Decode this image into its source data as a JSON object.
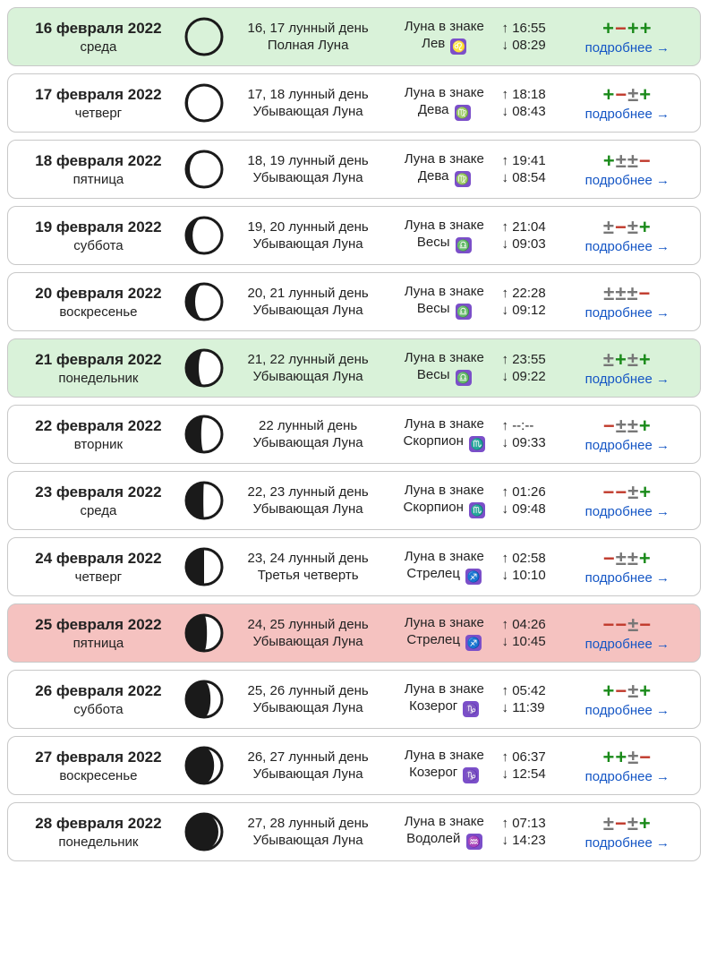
{
  "moreLabel": "подробнее →",
  "signLabel": "Луна в знаке",
  "colors": {
    "green": "#d9f2d9",
    "red": "#f5c2c0",
    "link": "#1556c5",
    "plus": "#1a8a1a",
    "minus": "#c0392b",
    "pm": "#777777",
    "zodiacBg": "#7b4fc9"
  },
  "ratingLegend": {
    "+": "plus",
    "-": "minus",
    "±": "pm"
  },
  "rows": [
    {
      "date": "16 февраля 2022",
      "dow": "среда",
      "lunarDay": "16, 17 лунный день",
      "phase": "Полная Луна",
      "sign": "Лев",
      "zglyph": "♌",
      "rise": "16:55",
      "set": "08:29",
      "rating": "+-++",
      "moonLit": 0.0,
      "bg": "green"
    },
    {
      "date": "17 февраля 2022",
      "dow": "четверг",
      "lunarDay": "17, 18 лунный день",
      "phase": "Убывающая Луна",
      "sign": "Дева",
      "zglyph": "♍",
      "rise": "18:18",
      "set": "08:43",
      "rating": "+-±+",
      "moonLit": 0.05,
      "bg": ""
    },
    {
      "date": "18 февраля 2022",
      "dow": "пятница",
      "lunarDay": "18, 19 лунный день",
      "phase": "Убывающая Луна",
      "sign": "Дева",
      "zglyph": "♍",
      "rise": "19:41",
      "set": "08:54",
      "rating": "+±±-",
      "moonLit": 0.1,
      "bg": ""
    },
    {
      "date": "19 февраля 2022",
      "dow": "суббота",
      "lunarDay": "19, 20 лунный день",
      "phase": "Убывающая Луна",
      "sign": "Весы",
      "zglyph": "♎",
      "rise": "21:04",
      "set": "09:03",
      "rating": "±-±+",
      "moonLit": 0.18,
      "bg": ""
    },
    {
      "date": "20 февраля 2022",
      "dow": "воскресенье",
      "lunarDay": "20, 21 лунный день",
      "phase": "Убывающая Луна",
      "sign": "Весы",
      "zglyph": "♎",
      "rise": "22:28",
      "set": "09:12",
      "rating": "±±±-",
      "moonLit": 0.25,
      "bg": ""
    },
    {
      "date": "21 февраля 2022",
      "dow": "понедельник",
      "lunarDay": "21, 22 лунный день",
      "phase": "Убывающая Луна",
      "sign": "Весы",
      "zglyph": "♎",
      "rise": "23:55",
      "set": "09:22",
      "rating": "±+±+",
      "moonLit": 0.35,
      "bg": "green"
    },
    {
      "date": "22 февраля 2022",
      "dow": "вторник",
      "lunarDay": "22 лунный день",
      "phase": "Убывающая Луна",
      "sign": "Скорпион",
      "zglyph": "♏",
      "rise": "--:--",
      "set": "09:33",
      "rating": "-±±+",
      "moonLit": 0.42,
      "bg": ""
    },
    {
      "date": "23 февраля 2022",
      "dow": "среда",
      "lunarDay": "22, 23 лунный день",
      "phase": "Убывающая Луна",
      "sign": "Скорпион",
      "zglyph": "♏",
      "rise": "01:26",
      "set": "09:48",
      "rating": "--±+",
      "moonLit": 0.48,
      "bg": ""
    },
    {
      "date": "24 февраля 2022",
      "dow": "четверг",
      "lunarDay": "23, 24 лунный день",
      "phase": "Третья четверть",
      "sign": "Стрелец",
      "zglyph": "♐",
      "rise": "02:58",
      "set": "10:10",
      "rating": "-±±+",
      "moonLit": 0.5,
      "bg": ""
    },
    {
      "date": "25 февраля 2022",
      "dow": "пятница",
      "lunarDay": "24, 25 лунный день",
      "phase": "Убывающая Луна",
      "sign": "Стрелец",
      "zglyph": "♐",
      "rise": "04:26",
      "set": "10:45",
      "rating": "--±-",
      "moonLit": 0.58,
      "bg": "red"
    },
    {
      "date": "26 февраля 2022",
      "dow": "суббота",
      "lunarDay": "25, 26 лунный день",
      "phase": "Убывающая Луна",
      "sign": "Козерог",
      "zglyph": "♑",
      "rise": "05:42",
      "set": "11:39",
      "rating": "+-±+",
      "moonLit": 0.68,
      "bg": ""
    },
    {
      "date": "27 февраля 2022",
      "dow": "воскресенье",
      "lunarDay": "26, 27 лунный день",
      "phase": "Убывающая Луна",
      "sign": "Козерог",
      "zglyph": "♑",
      "rise": "06:37",
      "set": "12:54",
      "rating": "++±-",
      "moonLit": 0.78,
      "bg": ""
    },
    {
      "date": "28 февраля 2022",
      "dow": "понедельник",
      "lunarDay": "27, 28 лунный день",
      "phase": "Убывающая Луна",
      "sign": "Водолей",
      "zglyph": "♒",
      "rise": "07:13",
      "set": "14:23",
      "rating": "±-±+",
      "moonLit": 0.9,
      "bg": ""
    }
  ]
}
